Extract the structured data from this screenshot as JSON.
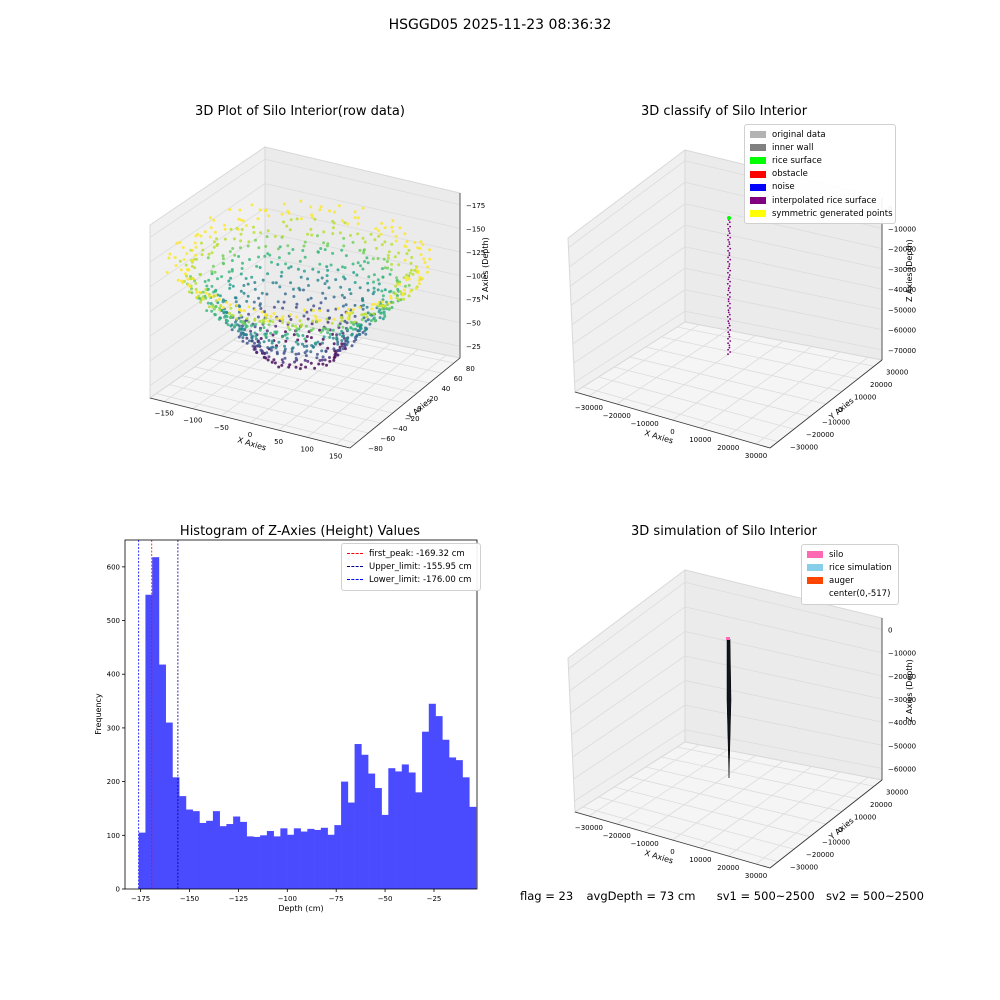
{
  "suptitle": "HSGGD05 2025-11-23 08:36:32",
  "footer": {
    "flag": "flag = 23",
    "avg_depth": "avgDepth = 73 cm",
    "sv1": "sv1 = 500~2500",
    "sv2": "sv2 = 500~2500"
  },
  "chart_data": [
    {
      "type": "scatter",
      "projection": "3d",
      "title": "3D Plot of Silo Interior(row data)",
      "xlabel": "X Axies",
      "ylabel": "Y Axies",
      "zlabel": "Z Axies (Depth)",
      "xlim": [
        -160,
        160
      ],
      "ylim": [
        -85,
        95
      ],
      "zlim": [
        -195,
        -5
      ],
      "x_ticks": [
        "−150",
        "−100",
        "−50",
        "0",
        "50",
        "100",
        "150"
      ],
      "y_ticks": [
        "−80",
        "−60",
        "−40",
        "−20",
        "0",
        "20",
        "40",
        "60",
        "80"
      ],
      "z_ticks": [
        "−175",
        "−150",
        "−125",
        "−100",
        "−75",
        "−50",
        "−25"
      ],
      "colormap": "viridis",
      "description_points": "dense point cloud of silo interior, bottom near -175, rim near -25"
    },
    {
      "type": "scatter",
      "projection": "3d",
      "title": "3D classify of Silo Interior",
      "xlabel": "X Axies",
      "ylabel": "Y Axies",
      "zlabel": "Z Axies (Depth)",
      "x_ticks": [
        "−30000",
        "−20000",
        "−10000",
        "0",
        "10000",
        "20000",
        "30000"
      ],
      "y_ticks": [
        "−30000",
        "−20000",
        "−10000",
        "0",
        "10000",
        "20000",
        "30000"
      ],
      "z_ticks": [
        "0",
        "−10000",
        "−20000",
        "−30000",
        "−40000",
        "−50000",
        "−60000",
        "−70000"
      ],
      "legend": [
        {
          "label": "original data",
          "color": "#b3b3b3"
        },
        {
          "label": "inner wall",
          "color": "#808080"
        },
        {
          "label": "rice surface",
          "color": "#00ff00"
        },
        {
          "label": "obstacle",
          "color": "#ff0000"
        },
        {
          "label": "noise",
          "color": "#0000ff"
        },
        {
          "label": "interpolated rice surface",
          "color": "#800080"
        },
        {
          "label": "symmetric generated points",
          "color": "#ffff00"
        }
      ]
    },
    {
      "type": "bar",
      "title": "Histogram of Z-Axies (Height) Values",
      "xlabel": "Depth (cm)",
      "ylabel": "Frequency",
      "xlim": [
        -183,
        -3
      ],
      "ylim": [
        0,
        650
      ],
      "x_ticks": [
        -175,
        -150,
        -125,
        -100,
        -75,
        -50,
        -25
      ],
      "x_tick_labels": [
        "−175",
        "−150",
        "−125",
        "−100",
        "−75",
        "−50",
        "−25"
      ],
      "y_ticks": [
        0,
        100,
        200,
        300,
        400,
        500,
        600
      ],
      "bin_start": -176,
      "bin_width": 3.45,
      "bar_color": "#4a4aff",
      "values": [
        105,
        548,
        618,
        418,
        310,
        208,
        173,
        148,
        145,
        123,
        127,
        145,
        117,
        121,
        135,
        125,
        98,
        97,
        100,
        108,
        98,
        113,
        101,
        113,
        107,
        112,
        110,
        114,
        101,
        119,
        200,
        161,
        270,
        250,
        215,
        188,
        138,
        225,
        219,
        232,
        217,
        180,
        293,
        345,
        322,
        278,
        245,
        240,
        208,
        153
      ],
      "vlines": [
        {
          "x": -169.32,
          "color": "#ff0000",
          "label": "first_peak: -169.32 cm"
        },
        {
          "x": -155.95,
          "color": "#00008b",
          "label": "Upper_limit: -155.95 cm"
        },
        {
          "x": -176.0,
          "color": "#0000ff",
          "label": "Lower_limit: -176.00 cm"
        }
      ]
    },
    {
      "type": "surface",
      "projection": "3d",
      "title": "3D simulation of Silo Interior",
      "xlabel": "X Axies",
      "ylabel": "Y Axies",
      "zlabel": "Z Axies (Depth)",
      "x_ticks": [
        "−30000",
        "−20000",
        "−10000",
        "0",
        "10000",
        "20000",
        "30000"
      ],
      "y_ticks": [
        "−30000",
        "−20000",
        "−10000",
        "0",
        "10000",
        "20000",
        "30000"
      ],
      "z_ticks": [
        "0",
        "−10000",
        "−20000",
        "−30000",
        "−40000",
        "−50000",
        "−60000"
      ],
      "legend": [
        {
          "label": "silo",
          "color": "#ff69b4"
        },
        {
          "label": "rice simulation",
          "color": "#87ceeb"
        },
        {
          "label": "auger",
          "color": "#ff4500"
        },
        {
          "label": "center(0,-517)",
          "color": ""
        }
      ]
    }
  ]
}
